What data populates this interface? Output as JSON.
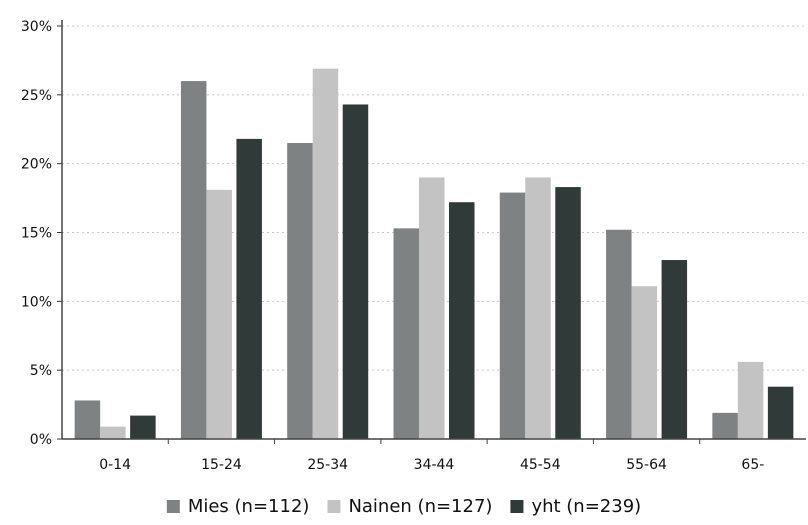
{
  "chart_data": {
    "type": "bar",
    "title": "",
    "xlabel": "",
    "ylabel": "",
    "categories": [
      "0-14",
      "15-24",
      "25-34",
      "34-44",
      "45-54",
      "55-64",
      "65-"
    ],
    "ylim": [
      0,
      30
    ],
    "yticks": [
      0,
      5,
      10,
      15,
      20,
      25,
      30
    ],
    "ytick_labels": [
      "0%",
      "5%",
      "10%",
      "15%",
      "20%",
      "25%",
      "30%"
    ],
    "grid": "horizontal dotted",
    "legend_position": "bottom",
    "series": [
      {
        "name": "Mies (n=112)",
        "color": "#7f8282",
        "values": [
          2.8,
          26.0,
          21.5,
          15.3,
          17.9,
          15.2,
          1.9
        ]
      },
      {
        "name": "Nainen (n=127)",
        "color": "#c3c3c3",
        "values": [
          0.9,
          18.1,
          26.9,
          19.0,
          19.0,
          11.1,
          5.6
        ]
      },
      {
        "name": "yht (n=239)",
        "color": "#2f3a39",
        "values": [
          1.7,
          21.8,
          24.3,
          17.2,
          18.3,
          13.0,
          3.8
        ]
      }
    ]
  }
}
